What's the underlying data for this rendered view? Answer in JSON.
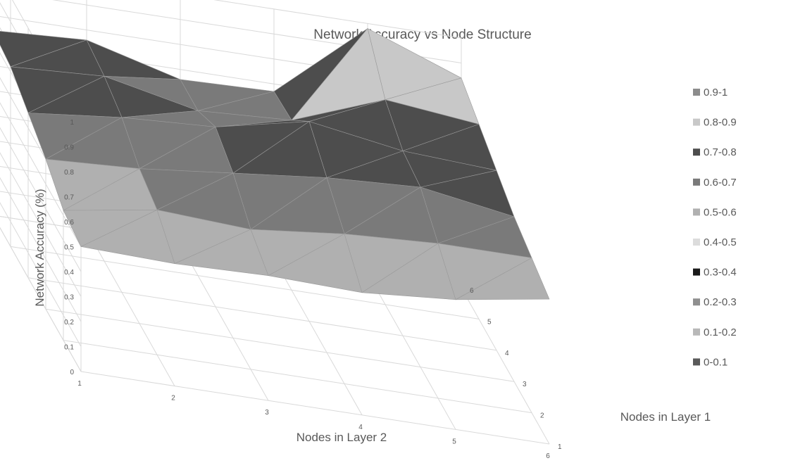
{
  "chart_data": {
    "type": "surface",
    "title": "Network Accuracy vs Node Structure",
    "xlabel": "Nodes in Layer 2",
    "ylabel": "Nodes in Layer 1",
    "zlabel": "Network Accuracy (%)",
    "x": [
      1,
      2,
      3,
      4,
      5,
      6
    ],
    "y": [
      1,
      2,
      3,
      4,
      5,
      6
    ],
    "z_ticks": [
      "0",
      "0.1",
      "0.2",
      "0.3",
      "0.4",
      "0.5",
      "0.6",
      "0.7",
      "0.8",
      "0.9",
      "1"
    ],
    "zlim": [
      0,
      1
    ],
    "grid": true,
    "legend_position": "right",
    "z_grid_rows_by_layer1": [
      [
        0.5,
        0.49,
        0.5,
        0.49,
        0.52,
        0.58
      ],
      [
        0.52,
        0.58,
        0.56,
        0.6,
        0.62,
        0.62
      ],
      [
        0.6,
        0.62,
        0.66,
        0.7,
        0.72,
        0.66
      ],
      [
        0.66,
        0.7,
        0.72,
        0.8,
        0.74,
        0.72
      ],
      [
        0.72,
        0.74,
        0.66,
        0.68,
        0.82,
        0.78
      ],
      [
        0.74,
        0.76,
        0.66,
        0.67,
        0.98,
        0.84
      ]
    ],
    "legend": [
      {
        "label": "0.9-1",
        "color": "#8c8c8c"
      },
      {
        "label": "0.8-0.9",
        "color": "#c8c8c8"
      },
      {
        "label": "0.7-0.8",
        "color": "#4d4d4d"
      },
      {
        "label": "0.6-0.7",
        "color": "#7a7a7a"
      },
      {
        "label": "0.5-0.6",
        "color": "#b0b0b0"
      },
      {
        "label": "0.4-0.5",
        "color": "#dcdcdc"
      },
      {
        "label": "0.3-0.4",
        "color": "#1a1a1a"
      },
      {
        "label": "0.2-0.3",
        "color": "#8f8f8f"
      },
      {
        "label": "0.1-0.2",
        "color": "#b8b8b8"
      },
      {
        "label": "0-0.1",
        "color": "#5a5a5a"
      }
    ]
  }
}
